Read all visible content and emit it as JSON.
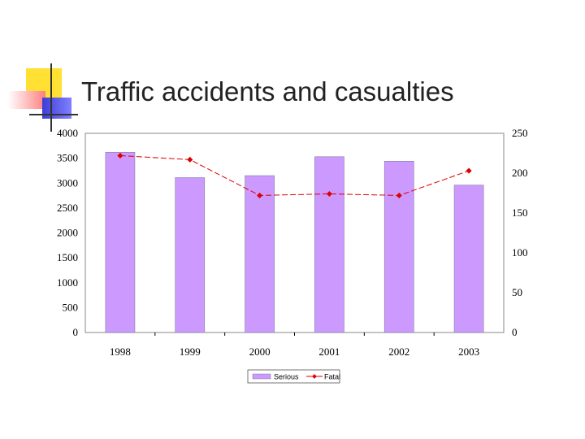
{
  "slide": {
    "title": "Traffic accidents and casualties"
  },
  "colors": {
    "bar_fill": "#cc99ff",
    "bar_stroke": "#7f7f9f",
    "line": "#dd0000",
    "deco_yellow": "#ffe033",
    "deco_pink": "#ff8a8a",
    "deco_blue": "#3d3dd6"
  },
  "chart_data": {
    "type": "bar",
    "title": "",
    "xlabel": "",
    "ylabel": "",
    "categories": [
      "1998",
      "1999",
      "2000",
      "2001",
      "2002",
      "2003"
    ],
    "series": [
      {
        "name": "Serious",
        "type": "bar",
        "axis": "left",
        "values": [
          3620,
          3110,
          3150,
          3530,
          3440,
          2960
        ]
      },
      {
        "name": "Fatal",
        "type": "line",
        "axis": "right",
        "values": [
          222,
          217,
          172,
          174,
          172,
          203
        ]
      }
    ],
    "ylim": [
      0,
      4000
    ],
    "y2lim": [
      0,
      250
    ],
    "yticks": [
      "0",
      "500",
      "1000",
      "1500",
      "2000",
      "2500",
      "3000",
      "3500",
      "4000"
    ],
    "y2ticks": [
      "0",
      "50",
      "100",
      "150",
      "200",
      "250"
    ],
    "grid": false,
    "legend_position": "bottom"
  }
}
